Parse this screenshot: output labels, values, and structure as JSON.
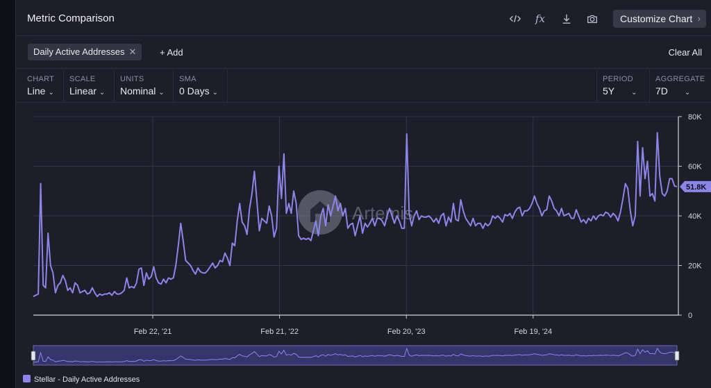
{
  "header": {
    "title": "Metric Comparison",
    "customize_label": "Customize Chart",
    "icons": [
      "code-icon",
      "formula-icon",
      "download-icon",
      "camera-icon"
    ]
  },
  "filters": {
    "chip_label": "Daily Active Addresses",
    "add_label": "+ Add",
    "clear_label": "Clear All"
  },
  "options": {
    "chart": {
      "label": "CHART",
      "value": "Line"
    },
    "scale": {
      "label": "SCALE",
      "value": "Linear"
    },
    "units": {
      "label": "UNITS",
      "value": "Nominal"
    },
    "sma": {
      "label": "SMA",
      "value": "0 Days"
    },
    "period": {
      "label": "PERIOD",
      "value": "5Y"
    },
    "aggregate": {
      "label": "AGGREGATE",
      "value": "7D"
    }
  },
  "watermark": "Artemis",
  "colors": {
    "line": "#8b86e8",
    "accent": "#8b86e8",
    "background": "#1d1e29",
    "grid": "#34354a"
  },
  "chart_data": {
    "type": "line",
    "title": "",
    "xlabel": "",
    "ylabel": "",
    "ylim": [
      0,
      80000
    ],
    "y_ticks": [
      "0",
      "20K",
      "40K",
      "60K",
      "80K"
    ],
    "x_tick_labels": [
      "Feb 22, '21",
      "Feb 21, '22",
      "Feb 20, '23",
      "Feb 19, '24"
    ],
    "x_range_weeks": [
      0,
      264
    ],
    "x_tick_weeks": [
      49,
      101,
      153,
      205
    ],
    "last_value_label": "51.8K",
    "grid": true,
    "series": [
      {
        "name": "Stellar - Daily Active Addresses",
        "values": [
          7500,
          8000,
          8500,
          53000,
          12000,
          11000,
          33000,
          20000,
          17000,
          9000,
          12000,
          13000,
          16000,
          14000,
          10000,
          11000,
          9000,
          13000,
          12000,
          9000,
          9500,
          10000,
          8500,
          9000,
          11000,
          9000,
          7500,
          8500,
          8000,
          8500,
          8500,
          9000,
          8000,
          9500,
          8500,
          8500,
          9000,
          10000,
          15000,
          11000,
          11500,
          11000,
          13000,
          18500,
          19000,
          12000,
          17000,
          14500,
          15500,
          19500,
          15000,
          13000,
          12500,
          14500,
          13000,
          15000,
          14500,
          15000,
          20000,
          28000,
          37000,
          30000,
          22000,
          21000,
          20000,
          18000,
          16500,
          19000,
          17500,
          17000,
          17000,
          18000,
          19500,
          21000,
          19000,
          20000,
          22000,
          21500,
          25000,
          23000,
          20000,
          29000,
          28000,
          38000,
          45000,
          37500,
          36000,
          32500,
          43000,
          49000,
          58000,
          46000,
          34000,
          39000,
          38000,
          37000,
          44000,
          40000,
          31500,
          35000,
          60000,
          47000,
          65000,
          41000,
          45000,
          41000,
          50000,
          45000,
          32000,
          30500,
          31000,
          30500,
          31000,
          30000,
          34000,
          38000,
          32000,
          40000,
          43000,
          36000,
          44500,
          40000,
          44000,
          48000,
          42000,
          45000,
          40000,
          43000,
          35000,
          36500,
          37000,
          32000,
          36000,
          40000,
          33000,
          37000,
          35500,
          37000,
          39000,
          36000,
          39000,
          39000,
          38000,
          36000,
          40000,
          43000,
          40000,
          37000,
          40000,
          38000,
          35000,
          35000,
          73000,
          41000,
          36000,
          40000,
          42000,
          38500,
          40000,
          39500,
          39500,
          40000,
          39000,
          37500,
          39000,
          37000,
          40000,
          41000,
          36000,
          39500,
          37500,
          45000,
          38500,
          38000,
          46500,
          42000,
          39000,
          37500,
          36000,
          39000,
          36000,
          37000,
          37000,
          35000,
          37000,
          36000,
          37000,
          40000,
          39000,
          40000,
          39000,
          37500,
          40500,
          40000,
          41000,
          39000,
          41500,
          43000,
          43500,
          40000,
          42000,
          42000,
          43000,
          45000,
          48000,
          45000,
          43000,
          40000,
          42000,
          42500,
          48000,
          46000,
          43000,
          42000,
          40000,
          43000,
          40000,
          40500,
          41000,
          39000,
          39000,
          42500,
          40000,
          37500,
          38500,
          37000,
          39000,
          38000,
          40000,
          38500,
          40000,
          40500,
          40000,
          41500,
          41000,
          39500,
          41000,
          40000,
          38000,
          41500,
          47000,
          53000,
          51000,
          42000,
          36000,
          40000,
          70000,
          48000,
          67500,
          55000,
          62000,
          48000,
          49000,
          46000,
          73500,
          56000,
          49000,
          48000,
          50000,
          55000,
          55000,
          52000,
          51800
        ]
      }
    ]
  }
}
